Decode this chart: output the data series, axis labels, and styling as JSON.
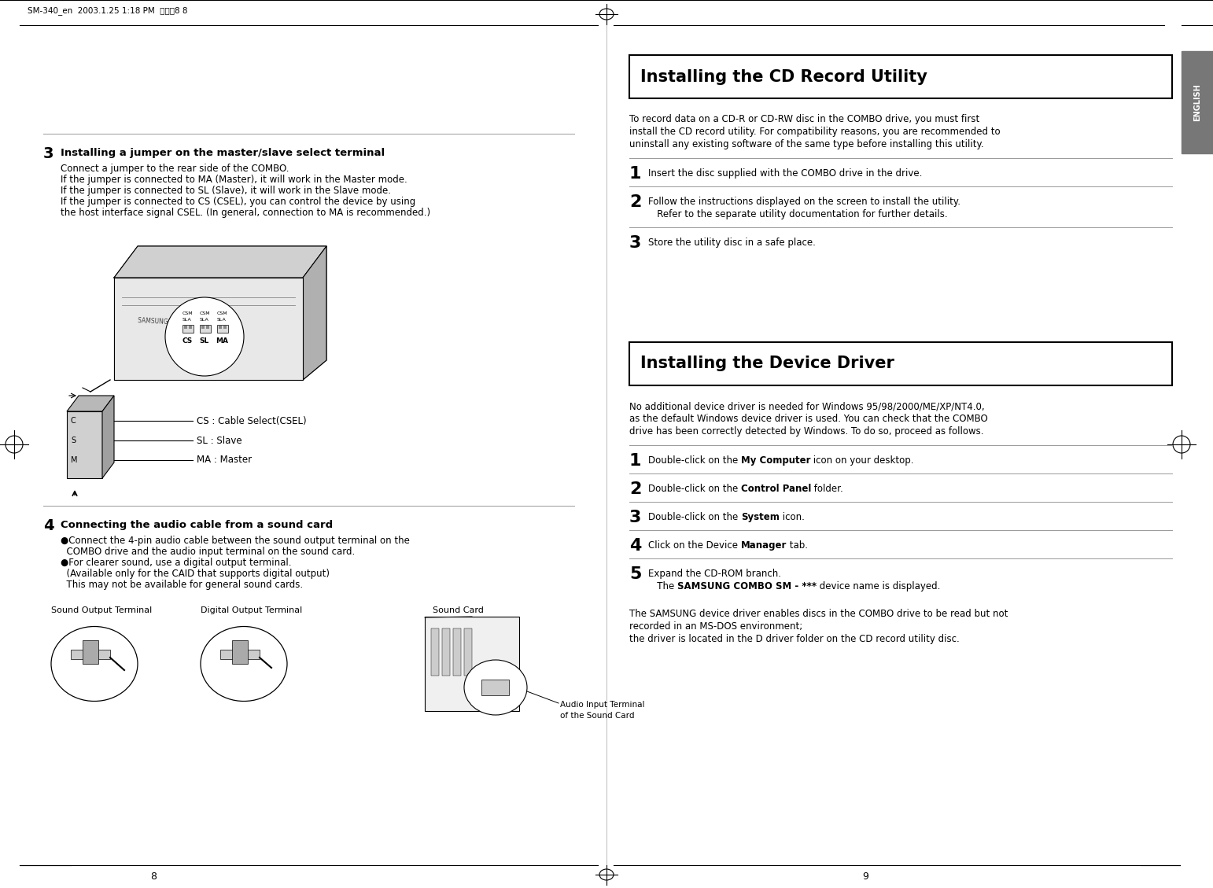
{
  "bg_color": "#ffffff",
  "header_text": "SM-340_en  2003.1.25 1:18 PM  페이질8 8",
  "page_num_left": "8",
  "page_num_right": "9",
  "english_tab_text": "ENGLISH",
  "section3_title": "Installing a jumper on the master/slave select terminal",
  "section3_body": [
    "Connect a jumper to the rear side of the COMBO.",
    "If the jumper is connected to MA (Master), it will work in the Master mode.",
    "If the jumper is connected to SL (Slave), it will work in the Slave mode.",
    "If the jumper is connected to CS (CSEL), you can control the device by using",
    "the host interface signal CSEL. (In general, connection to MA is recommended.)"
  ],
  "cs_label": "CS : Cable Select(CSEL)",
  "sl_label": "SL : Slave",
  "ma_label": "MA : Master",
  "section4_title": "Connecting the audio cable from a sound card",
  "section4_body_line1a": "●Connect the 4-pin audio cable between the sound output terminal on the",
  "section4_body_line1b": "  COMBO drive and the audio input terminal on the sound card.",
  "section4_body_line2a": "●For clearer sound, use a digital output terminal.",
  "section4_body_line2b": "  (Available only for the CAID that supports digital output)",
  "section4_body_line2c": "  This may not be available for general sound cards.",
  "sound_output_label": "Sound Output Terminal",
  "digital_output_label": "Digital Output Terminal",
  "sound_card_label": "Sound Card",
  "audio_input_label_1": "Audio Input Terminal",
  "audio_input_label_2": "of the Sound Card",
  "cd_title": "Installing the CD Record Utility",
  "cd_intro_1": "To record data on a CD-R or CD-RW disc in the COMBO drive, you must first",
  "cd_intro_2": "install the CD record utility. For compatibility reasons, you are recommended to",
  "cd_intro_3": "uninstall any existing software of the same type before installing this utility.",
  "cd_step1": "Insert the disc supplied with the COMBO drive in the drive.",
  "cd_step2a": "Follow the instructions displayed on the screen to install the utility.",
  "cd_step2b": "   Refer to the separate utility documentation for further details.",
  "cd_step3": "Store the utility disc in a safe place.",
  "dd_title": "Installing the Device Driver",
  "dd_intro_1": "No additional device driver is needed for Windows 95/98/2000/ME/XP/NT4.0,",
  "dd_intro_2": "as the default Windows device driver is used. You can check that the COMBO",
  "dd_intro_3": "drive has been correctly detected by Windows. To do so, proceed as follows.",
  "dd_step1_pre": "Double-click on the ",
  "dd_step1_bold": "My Computer",
  "dd_step1_post": " icon on your desktop.",
  "dd_step2_pre": "Double-click on the ",
  "dd_step2_bold": "Control Panel",
  "dd_step2_post": " folder.",
  "dd_step3_pre": "Double-click on the ",
  "dd_step3_bold": "System",
  "dd_step3_post": " icon.",
  "dd_step4_pre": "Click on the Device ",
  "dd_step4_bold": "Manager",
  "dd_step4_post": " tab.",
  "dd_step5a": "Expand the CD-ROM branch.",
  "dd_step5b_pre": "   The ",
  "dd_step5b_bold": "SAMSUNG COMBO SM - ***",
  "dd_step5b_post": " device name is displayed.",
  "dd_footer_1": "The SAMSUNG device driver enables discs in the COMBO drive to be read but not",
  "dd_footer_2": "recorded in an MS-DOS environment;",
  "dd_footer_3": "the driver is located in the D driver folder on the CD record utility disc."
}
